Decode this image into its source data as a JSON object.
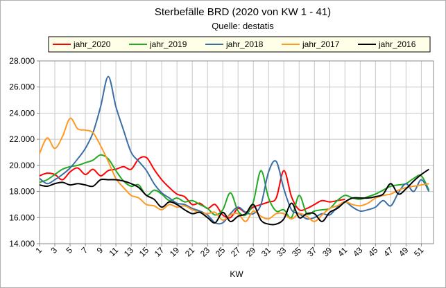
{
  "chart_data": {
    "type": "line",
    "title": "Sterbefälle BRD  (2020 von KW 1 - 41)",
    "subtitle": "Quelle: destatis",
    "x_label": "KW",
    "x": [
      1,
      2,
      3,
      4,
      5,
      6,
      7,
      8,
      9,
      10,
      11,
      12,
      13,
      14,
      15,
      16,
      17,
      18,
      19,
      20,
      21,
      22,
      23,
      24,
      25,
      26,
      27,
      28,
      29,
      30,
      31,
      32,
      33,
      34,
      35,
      36,
      37,
      38,
      39,
      40,
      41,
      42,
      43,
      44,
      45,
      46,
      47,
      48,
      49,
      50,
      51,
      52
    ],
    "xlim": [
      1,
      52.6
    ],
    "xticks": [
      1,
      3,
      5,
      7,
      9,
      11,
      13,
      15,
      17,
      19,
      21,
      23,
      25,
      27,
      29,
      31,
      33,
      35,
      37,
      39,
      41,
      43,
      45,
      47,
      49,
      51
    ],
    "ylim": [
      14000,
      28000
    ],
    "yticks": [
      {
        "value": 14000,
        "label": "14.000"
      },
      {
        "value": 16000,
        "label": "16.000"
      },
      {
        "value": 18000,
        "label": "18.000"
      },
      {
        "value": 20000,
        "label": "20.000"
      },
      {
        "value": 22000,
        "label": "22.000"
      },
      {
        "value": 24000,
        "label": "24.000"
      },
      {
        "value": 26000,
        "label": "26.000"
      },
      {
        "value": 28000,
        "label": "28.000"
      }
    ],
    "grid": true,
    "legend": "top",
    "series": [
      {
        "name": "jahr_2020",
        "color": "#ff0000",
        "values": [
          19200,
          19400,
          19300,
          18900,
          19500,
          19800,
          19300,
          19700,
          19200,
          19600,
          19700,
          19900,
          19700,
          20500,
          20600,
          19700,
          18900,
          18300,
          17800,
          17600,
          17000,
          17100,
          16700,
          17000,
          16200,
          16000,
          16700,
          16400,
          16800,
          17000,
          17200,
          17500,
          19600,
          17600,
          16600,
          16700,
          17000,
          17300,
          17200,
          17300,
          17400,
          null,
          null,
          null,
          null,
          null,
          null,
          null,
          null,
          null,
          null,
          null
        ]
      },
      {
        "name": "jahr_2019",
        "color": "#22aa22",
        "values": [
          18700,
          18900,
          19300,
          19700,
          19900,
          20000,
          20200,
          20400,
          20800,
          20500,
          19600,
          18800,
          18400,
          18500,
          17700,
          18100,
          17800,
          17300,
          17500,
          17200,
          17300,
          17000,
          16700,
          16200,
          16600,
          17900,
          16500,
          16200,
          17200,
          19600,
          17500,
          16500,
          16600,
          16000,
          17700,
          16300,
          16500,
          16600,
          16700,
          17300,
          17700,
          17500,
          17400,
          17600,
          17800,
          18100,
          18400,
          18500,
          18600,
          19000,
          19200,
          18100
        ]
      },
      {
        "name": "jahr_2018",
        "color": "#3a6ea5",
        "values": [
          19000,
          18600,
          18900,
          19300,
          19800,
          20500,
          21300,
          22500,
          24500,
          26800,
          24500,
          22700,
          21000,
          20300,
          19600,
          18600,
          17900,
          17500,
          17100,
          17000,
          16700,
          16500,
          16200,
          15600,
          15600,
          16300,
          16800,
          16400,
          16300,
          17000,
          19500,
          20300,
          18200,
          16600,
          16300,
          15900,
          16000,
          16300,
          16200,
          16800,
          17200,
          16800,
          16500,
          16600,
          16800,
          17300,
          16900,
          17900,
          18600,
          18000,
          18900,
          18000
        ]
      },
      {
        "name": "jahr_2017",
        "color": "#ff9922",
        "values": [
          20900,
          22100,
          21300,
          22200,
          23600,
          22800,
          22700,
          22500,
          21500,
          20300,
          19000,
          18300,
          17700,
          17500,
          17000,
          16900,
          16600,
          17000,
          16800,
          16900,
          16600,
          16400,
          16300,
          16400,
          15800,
          16200,
          16300,
          15700,
          16500,
          16100,
          15900,
          16300,
          16300,
          15900,
          16300,
          16100,
          15700,
          16200,
          16700,
          16900,
          17200,
          17000,
          16900,
          17100,
          17500,
          17700,
          17800,
          18100,
          18300,
          18400,
          18500,
          18600
        ]
      },
      {
        "name": "jahr_2016",
        "color": "#000000",
        "values": [
          18500,
          18400,
          18600,
          18700,
          18500,
          18600,
          18500,
          18400,
          18900,
          18900,
          18900,
          18800,
          18600,
          18300,
          17700,
          17400,
          16800,
          17200,
          17000,
          16600,
          16300,
          16400,
          16000,
          15600,
          16400,
          15700,
          16100,
          16300,
          17000,
          15800,
          15500,
          15500,
          15900,
          17100,
          16000,
          16300,
          16300,
          15700,
          16400,
          16700,
          17200,
          17500,
          17500,
          17500,
          17600,
          17800,
          18600,
          17800,
          18200,
          18800,
          19300,
          19700
        ]
      }
    ]
  }
}
